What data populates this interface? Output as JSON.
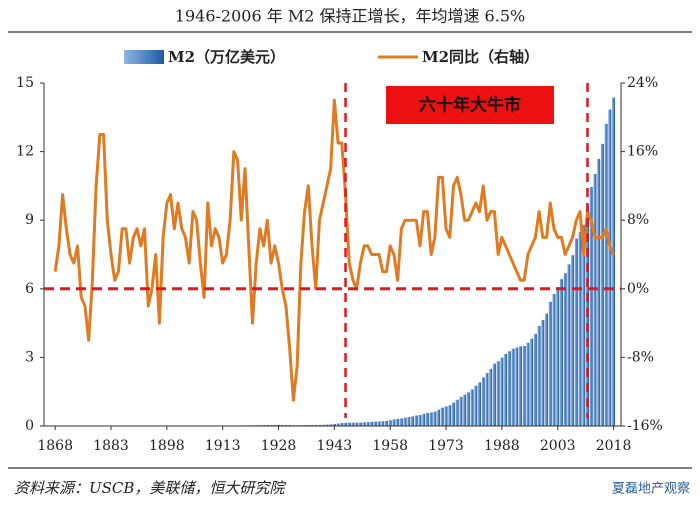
{
  "chart_data": {
    "type": "bar_line",
    "title": "1946-2006 年 M2 保持正增长，年均增速 6.5%",
    "annotation": "六十年大牛市",
    "source": "资料来源：USCB，美联储，恒大研究院",
    "watermark": "夏磊地产观察",
    "xlim": [
      1865,
      2020
    ],
    "xticks": [
      1868,
      1883,
      1898,
      1913,
      1928,
      1943,
      1958,
      1973,
      1988,
      2003,
      2018
    ],
    "ylim": [
      0,
      15
    ],
    "yticks": [
      0,
      3,
      6,
      9,
      12,
      15
    ],
    "y2lim": [
      -16,
      24
    ],
    "y2ticks": [
      {
        "value": -16,
        "label": "-16%"
      },
      {
        "value": -8,
        "label": "-8%"
      },
      {
        "value": 0,
        "label": "0%"
      },
      {
        "value": 8,
        "label": "8%"
      },
      {
        "value": 16,
        "label": "16%"
      },
      {
        "value": 24,
        "label": "24%"
      }
    ],
    "reference_lines": {
      "x": [
        1946,
        2011
      ],
      "y2": [
        0
      ],
      "color": "#e8141b"
    },
    "x": [
      1868,
      1869,
      1870,
      1871,
      1872,
      1873,
      1874,
      1875,
      1876,
      1877,
      1878,
      1879,
      1880,
      1881,
      1882,
      1883,
      1884,
      1885,
      1886,
      1887,
      1888,
      1889,
      1890,
      1891,
      1892,
      1893,
      1894,
      1895,
      1896,
      1897,
      1898,
      1899,
      1900,
      1901,
      1902,
      1903,
      1904,
      1905,
      1906,
      1907,
      1908,
      1909,
      1910,
      1911,
      1912,
      1913,
      1914,
      1915,
      1916,
      1917,
      1918,
      1919,
      1920,
      1921,
      1922,
      1923,
      1924,
      1925,
      1926,
      1927,
      1928,
      1929,
      1930,
      1931,
      1932,
      1933,
      1934,
      1935,
      1936,
      1937,
      1938,
      1939,
      1940,
      1941,
      1942,
      1943,
      1944,
      1945,
      1946,
      1947,
      1948,
      1949,
      1950,
      1951,
      1952,
      1953,
      1954,
      1955,
      1956,
      1957,
      1958,
      1959,
      1960,
      1961,
      1962,
      1963,
      1964,
      1965,
      1966,
      1967,
      1968,
      1969,
      1970,
      1971,
      1972,
      1973,
      1974,
      1975,
      1976,
      1977,
      1978,
      1979,
      1980,
      1981,
      1982,
      1983,
      1984,
      1985,
      1986,
      1987,
      1988,
      1989,
      1990,
      1991,
      1992,
      1993,
      1994,
      1995,
      1996,
      1997,
      1998,
      1999,
      2000,
      2001,
      2002,
      2003,
      2004,
      2005,
      2006,
      2007,
      2008,
      2009,
      2010,
      2011,
      2012,
      2013,
      2014,
      2015,
      2016,
      2017,
      2018
    ],
    "series": [
      {
        "name": "M2（万亿美元）",
        "color": "#2e6db4",
        "values": [
          null,
          null,
          null,
          null,
          null,
          null,
          null,
          null,
          null,
          null,
          null,
          null,
          null,
          null,
          null,
          null,
          null,
          null,
          null,
          null,
          null,
          null,
          null,
          null,
          null,
          null,
          null,
          null,
          null,
          null,
          null,
          null,
          null,
          null,
          null,
          null,
          null,
          null,
          null,
          null,
          null,
          null,
          null,
          null,
          null,
          null,
          0.016,
          0.017,
          0.02,
          0.023,
          0.025,
          0.03,
          0.034,
          0.032,
          0.033,
          0.036,
          0.038,
          0.041,
          0.042,
          0.044,
          0.046,
          0.046,
          0.045,
          0.042,
          0.036,
          0.032,
          0.034,
          0.039,
          0.043,
          0.045,
          0.045,
          0.049,
          0.055,
          0.062,
          0.071,
          0.089,
          0.106,
          0.127,
          0.139,
          0.146,
          0.148,
          0.147,
          0.15,
          0.16,
          0.17,
          0.18,
          0.19,
          0.2,
          0.21,
          0.22,
          0.25,
          0.29,
          0.31,
          0.33,
          0.36,
          0.39,
          0.42,
          0.46,
          0.48,
          0.53,
          0.57,
          0.59,
          0.63,
          0.71,
          0.8,
          0.86,
          0.91,
          1.02,
          1.15,
          1.27,
          1.37,
          1.47,
          1.6,
          1.76,
          1.91,
          2.13,
          2.31,
          2.5,
          2.73,
          2.83,
          2.99,
          3.15,
          3.27,
          3.38,
          3.43,
          3.48,
          3.5,
          3.64,
          3.82,
          4.03,
          4.38,
          4.64,
          4.92,
          5.43,
          5.77,
          6.07,
          6.42,
          6.68,
          7.07,
          7.47,
          8.19,
          8.49,
          8.8,
          9.66,
          10.45,
          11.02,
          11.68,
          12.34,
          13.21,
          13.84,
          14.36
        ]
      },
      {
        "name": "M2同比（右轴）",
        "color": "#e07b22",
        "axis": "y2",
        "values": [
          2,
          5,
          11,
          7,
          4,
          3,
          5,
          -1,
          -2,
          -6,
          1,
          12,
          18,
          18,
          8,
          4,
          1,
          2,
          7,
          7,
          3,
          6,
          7,
          5,
          7,
          -2,
          0,
          4,
          -4,
          6,
          10,
          11,
          7,
          10,
          7,
          6,
          3,
          9,
          8,
          3,
          -1,
          10,
          5,
          7,
          6,
          3,
          4,
          8,
          16,
          15,
          8,
          14,
          5,
          -4,
          3,
          7,
          5,
          8,
          3,
          5,
          3,
          0,
          -2,
          -7,
          -13,
          -9,
          3,
          9,
          12,
          5,
          0,
          8,
          10,
          12,
          14,
          22,
          17,
          17,
          11,
          3,
          1,
          0,
          3,
          5,
          5,
          4,
          4,
          4,
          2,
          2,
          5,
          4,
          1,
          7,
          8,
          8,
          8,
          8,
          5,
          9,
          9,
          4,
          6,
          13,
          13,
          7,
          6,
          12,
          13,
          11,
          8,
          8,
          9,
          10,
          9,
          12,
          8,
          9,
          9,
          4,
          6,
          5,
          4,
          3,
          2,
          1,
          1,
          4,
          5,
          6,
          9,
          6,
          6,
          10,
          7,
          6,
          6,
          4,
          5,
          6,
          8,
          9,
          4,
          9,
          8,
          6,
          6,
          6,
          7,
          5,
          4
        ]
      }
    ]
  }
}
